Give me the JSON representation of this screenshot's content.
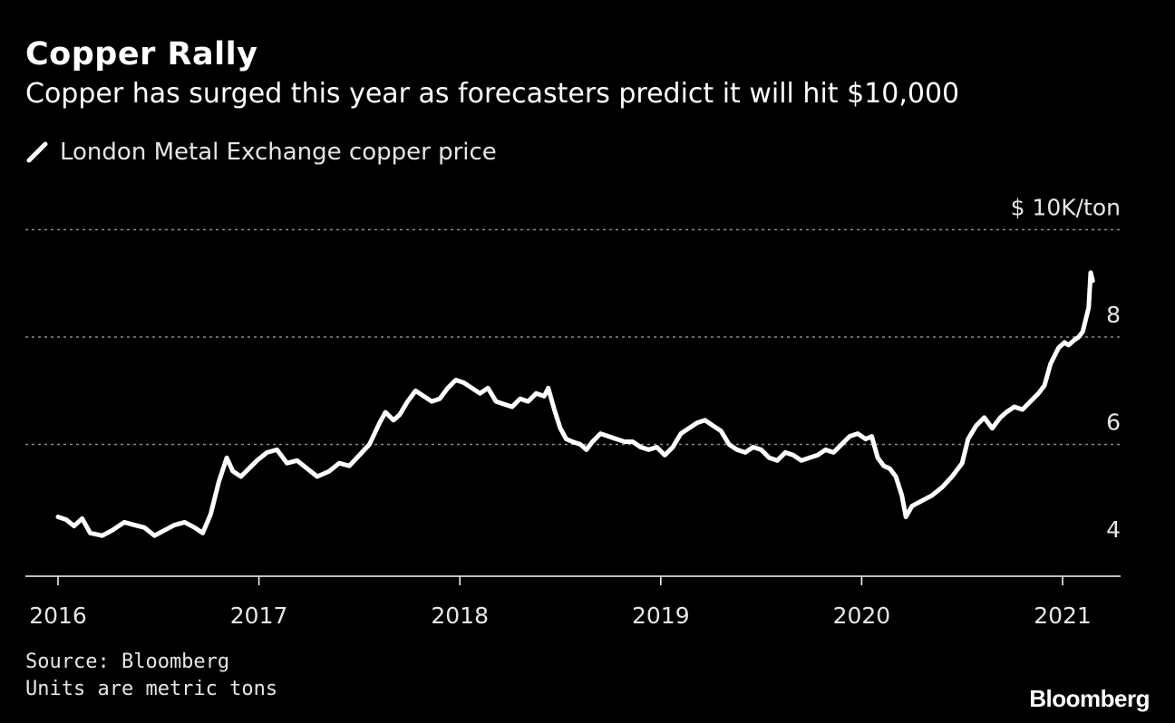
{
  "header": {
    "title": "Copper Rally",
    "subtitle": "Copper has surged this year as forecasters predict it will hit $10,000"
  },
  "legend": {
    "label": "London Metal Exchange copper price",
    "icon": "line-swatch-icon"
  },
  "footer": {
    "source": "Source: Bloomberg",
    "note": "Units are metric tons",
    "logo": "Bloomberg"
  },
  "colors": {
    "background": "#000000",
    "line": "#ffffff",
    "grid": "#8a8a8a",
    "text": "#e6e6e6"
  },
  "chart_data": {
    "type": "line",
    "title": "Copper Rally",
    "subtitle": "Copper has surged this year as forecasters predict it will hit $10,000",
    "ylabel": "$ 10K/ton",
    "xlabel": "",
    "ylim": [
      3.6,
      10
    ],
    "xlim": [
      2015.85,
      2021.5
    ],
    "x_ticks": [
      {
        "value": 2016,
        "label": "2016"
      },
      {
        "value": 2017,
        "label": "2017"
      },
      {
        "value": 2018,
        "label": "2018"
      },
      {
        "value": 2019,
        "label": "2019"
      },
      {
        "value": 2020,
        "label": "2020"
      },
      {
        "value": 2021,
        "label": "2021"
      }
    ],
    "y_ticks": [
      {
        "value": 4,
        "label": "4"
      },
      {
        "value": 6,
        "label": "6"
      },
      {
        "value": 8,
        "label": "8"
      },
      {
        "value": 10,
        "label": "$ 10K/ton"
      }
    ],
    "grid": "horizontal dotted",
    "legend_position": "top-left",
    "series": [
      {
        "name": "London Metal Exchange copper price",
        "x": [
          2016.0,
          2016.04,
          2016.08,
          2016.12,
          2016.16,
          2016.22,
          2016.27,
          2016.33,
          2016.38,
          2016.43,
          2016.48,
          2016.53,
          2016.58,
          2016.63,
          2016.68,
          2016.72,
          2016.76,
          2016.8,
          2016.84,
          2016.87,
          2016.91,
          2016.95,
          2016.99,
          2017.04,
          2017.09,
          2017.14,
          2017.19,
          2017.24,
          2017.29,
          2017.35,
          2017.4,
          2017.45,
          2017.5,
          2017.55,
          2017.6,
          2017.63,
          2017.67,
          2017.7,
          2017.74,
          2017.78,
          2017.82,
          2017.86,
          2017.9,
          2017.94,
          2017.98,
          2018.02,
          2018.06,
          2018.1,
          2018.14,
          2018.18,
          2018.22,
          2018.26,
          2018.3,
          2018.34,
          2018.38,
          2018.42,
          2018.44,
          2018.47,
          2018.5,
          2018.53,
          2018.56,
          2018.6,
          2018.63,
          2018.66,
          2018.7,
          2018.74,
          2018.78,
          2018.82,
          2018.86,
          2018.9,
          2018.94,
          2018.98,
          2019.02,
          2019.06,
          2019.1,
          2019.14,
          2019.18,
          2019.22,
          2019.26,
          2019.3,
          2019.34,
          2019.38,
          2019.42,
          2019.46,
          2019.5,
          2019.54,
          2019.58,
          2019.62,
          2019.66,
          2019.7,
          2019.74,
          2019.78,
          2019.82,
          2019.86,
          2019.9,
          2019.94,
          2019.98,
          2020.02,
          2020.05,
          2020.08,
          2020.11,
          2020.14,
          2020.17,
          2020.2,
          2020.22,
          2020.25,
          2020.3,
          2020.35,
          2020.4,
          2020.45,
          2020.5,
          2020.53,
          2020.57,
          2020.61,
          2020.65,
          2020.69,
          2020.72,
          2020.76,
          2020.8,
          2020.84,
          2020.88,
          2020.91,
          2020.94,
          2020.98,
          2021.01,
          2021.03,
          2021.06,
          2021.08,
          2021.1,
          2021.12,
          2021.13,
          2021.14,
          2021.15
        ],
        "y": [
          4.65,
          4.6,
          4.48,
          4.62,
          4.35,
          4.3,
          4.4,
          4.55,
          4.5,
          4.45,
          4.3,
          4.4,
          4.5,
          4.55,
          4.45,
          4.35,
          4.7,
          5.3,
          5.75,
          5.5,
          5.4,
          5.55,
          5.7,
          5.85,
          5.9,
          5.65,
          5.7,
          5.55,
          5.4,
          5.5,
          5.65,
          5.6,
          5.8,
          6.0,
          6.4,
          6.6,
          6.45,
          6.55,
          6.8,
          7.0,
          6.9,
          6.8,
          6.85,
          7.05,
          7.2,
          7.15,
          7.05,
          6.95,
          7.05,
          6.8,
          6.75,
          6.7,
          6.85,
          6.8,
          6.95,
          6.9,
          7.05,
          6.65,
          6.3,
          6.1,
          6.05,
          6.0,
          5.9,
          6.05,
          6.2,
          6.15,
          6.1,
          6.05,
          6.05,
          5.95,
          5.9,
          5.95,
          5.8,
          5.95,
          6.2,
          6.3,
          6.4,
          6.45,
          6.35,
          6.25,
          6.0,
          5.9,
          5.85,
          5.95,
          5.9,
          5.75,
          5.7,
          5.85,
          5.8,
          5.7,
          5.75,
          5.8,
          5.9,
          5.85,
          6.0,
          6.15,
          6.2,
          6.1,
          6.15,
          5.75,
          5.6,
          5.55,
          5.4,
          5.05,
          4.65,
          4.85,
          4.95,
          5.05,
          5.2,
          5.4,
          5.65,
          6.1,
          6.35,
          6.5,
          6.3,
          6.5,
          6.6,
          6.7,
          6.65,
          6.8,
          6.95,
          7.1,
          7.5,
          7.8,
          7.9,
          7.85,
          7.95,
          8.0,
          8.1,
          8.4,
          8.55,
          9.2,
          9.05
        ]
      }
    ]
  }
}
